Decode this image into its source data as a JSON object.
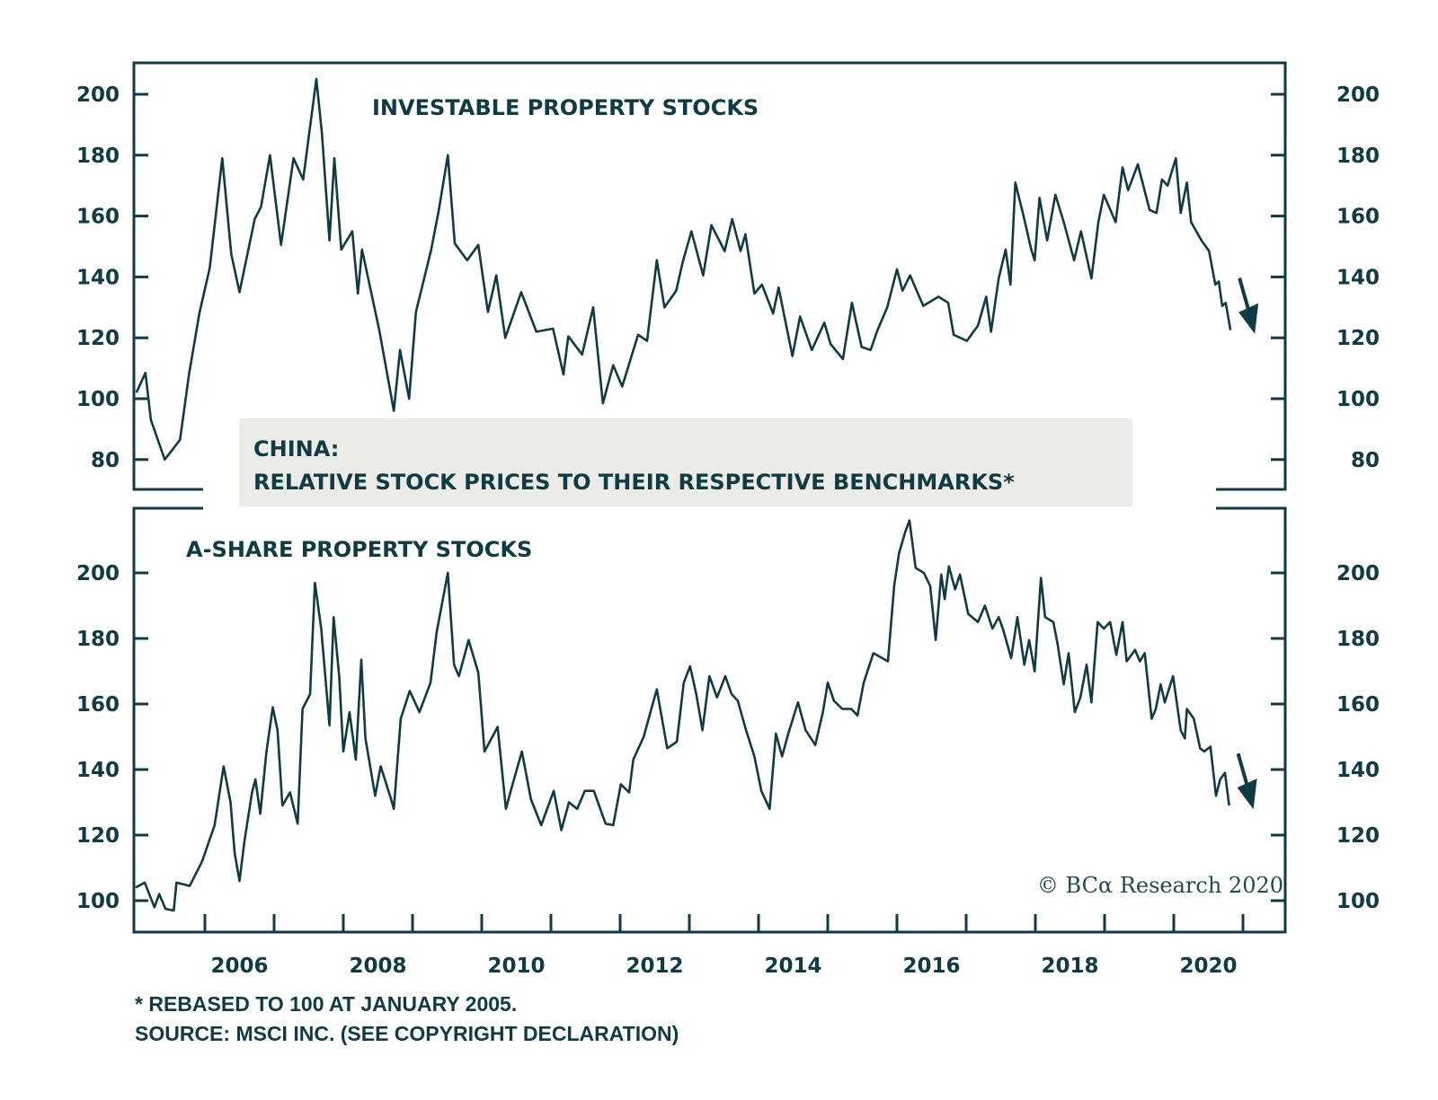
{
  "chart_data": [
    {
      "type": "line",
      "panel": "top",
      "title": "INVESTABLE PROPERTY STOCKS",
      "xlabel": "",
      "ylabel": "",
      "ylim": [
        70,
        210
      ],
      "xlim": [
        2005.0,
        2021.6
      ],
      "y_ticks": [
        80,
        100,
        120,
        140,
        160,
        180,
        200
      ],
      "y_tick_labels": [
        "80",
        "100",
        "120",
        "140",
        "160",
        "180",
        "200"
      ],
      "y_axis_sides": [
        "left",
        "right"
      ],
      "grid": false,
      "annotation": "down-arrow",
      "series": [
        {
          "name": "Investable property stocks (relative)",
          "x": [
            2005.01,
            2005.14,
            2005.22,
            2005.42,
            2005.64,
            2005.77,
            2005.92,
            2006.07,
            2006.25,
            2006.38,
            2006.5,
            2006.72,
            2006.81,
            2006.94,
            2007.1,
            2007.28,
            2007.42,
            2007.61,
            2007.69,
            2007.8,
            2007.87,
            2007.97,
            2008.13,
            2008.21,
            2008.27,
            2008.52,
            2008.73,
            2008.82,
            2008.95,
            2009.05,
            2009.27,
            2009.38,
            2009.51,
            2009.61,
            2009.79,
            2009.95,
            2010.09,
            2010.21,
            2010.34,
            2010.57,
            2010.79,
            2011.03,
            2011.18,
            2011.25,
            2011.45,
            2011.61,
            2011.75,
            2011.9,
            2012.03,
            2012.26,
            2012.39,
            2012.53,
            2012.64,
            2012.81,
            2012.9,
            2013.03,
            2013.2,
            2013.32,
            2013.51,
            2013.62,
            2013.74,
            2013.81,
            2013.94,
            2014.05,
            2014.21,
            2014.29,
            2014.49,
            2014.6,
            2014.77,
            2014.95,
            2015.04,
            2015.22,
            2015.35,
            2015.49,
            2015.62,
            2015.71,
            2015.86,
            2016.0,
            2016.08,
            2016.19,
            2016.38,
            2016.6,
            2016.74,
            2016.82,
            2017.01,
            2017.17,
            2017.29,
            2017.36,
            2017.47,
            2017.57,
            2017.64,
            2017.71,
            2017.84,
            2017.94,
            2017.99,
            2018.06,
            2018.17,
            2018.29,
            2018.41,
            2018.56,
            2018.66,
            2018.81,
            2018.91,
            2018.99,
            2019.16,
            2019.26,
            2019.34,
            2019.48,
            2019.65,
            2019.75,
            2019.83,
            2019.91,
            2020.03,
            2020.1,
            2020.19,
            2020.25,
            2020.4,
            2020.51,
            2020.6,
            2020.65,
            2020.7,
            2020.75,
            2020.82
          ],
          "values": [
            102,
            108.5,
            93,
            80,
            86.5,
            108,
            128,
            143,
            179,
            147.5,
            135,
            159,
            163,
            180,
            150.5,
            179,
            172,
            205,
            187.5,
            152,
            179,
            149,
            155,
            134.5,
            149,
            122.5,
            96,
            116,
            100,
            128.5,
            149,
            162,
            180,
            151,
            145.5,
            150.5,
            128.5,
            140.5,
            120,
            135,
            122,
            123,
            108,
            120.5,
            114.5,
            130,
            98.5,
            111,
            104,
            121,
            119,
            145.5,
            130,
            135.5,
            144.5,
            155,
            140.5,
            157,
            148.5,
            159,
            148.5,
            154,
            134.5,
            137.5,
            128,
            136.5,
            114,
            127,
            116,
            125,
            118,
            113,
            131.5,
            117,
            116,
            122,
            130,
            142.5,
            135.5,
            140.5,
            130.5,
            133.5,
            131.5,
            121,
            119,
            124,
            133.5,
            122,
            139.5,
            149,
            137.5,
            171,
            159,
            149,
            145.5,
            166,
            152,
            167,
            158,
            145.5,
            155,
            139.5,
            158,
            167,
            158,
            176,
            168.5,
            177,
            162,
            161,
            172,
            170,
            179,
            161,
            171,
            158,
            152,
            148.5,
            137.5,
            138.5,
            130.5,
            131.5,
            122.5
          ]
        }
      ]
    },
    {
      "type": "line",
      "panel": "bottom",
      "title": "A-SHARE PROPERTY STOCKS",
      "xlabel": "",
      "ylabel": "",
      "ylim": [
        90,
        220
      ],
      "xlim": [
        2005.0,
        2021.6
      ],
      "x_tick_labels": [
        "2006",
        "2008",
        "2010",
        "2012",
        "2014",
        "2016",
        "2018",
        "2020"
      ],
      "y_ticks": [
        100,
        120,
        140,
        160,
        180,
        200
      ],
      "y_tick_labels": [
        "100",
        "120",
        "140",
        "160",
        "180",
        "200"
      ],
      "y_axis_sides": [
        "left",
        "right"
      ],
      "grid": false,
      "annotation": "down-arrow",
      "series": [
        {
          "name": "A-share property stocks (relative)",
          "x": [
            2005.0,
            2005.13,
            2005.27,
            2005.34,
            2005.43,
            2005.55,
            2005.59,
            2005.78,
            2005.96,
            2006.14,
            2006.27,
            2006.37,
            2006.43,
            2006.5,
            2006.57,
            2006.68,
            2006.73,
            2006.8,
            2006.89,
            2006.98,
            2007.05,
            2007.12,
            2007.23,
            2007.34,
            2007.41,
            2007.52,
            2007.59,
            2007.68,
            2007.8,
            2007.86,
            2007.94,
            2008.0,
            2008.09,
            2008.18,
            2008.26,
            2008.32,
            2008.46,
            2008.54,
            2008.69,
            2008.73,
            2008.83,
            2008.96,
            2009.1,
            2009.26,
            2009.35,
            2009.51,
            2009.6,
            2009.67,
            2009.81,
            2009.95,
            2010.04,
            2010.23,
            2010.35,
            2010.42,
            2010.58,
            2010.71,
            2010.86,
            2011.04,
            2011.15,
            2011.26,
            2011.38,
            2011.49,
            2011.62,
            2011.79,
            2011.9,
            2012.01,
            2012.13,
            2012.19,
            2012.34,
            2012.45,
            2012.53,
            2012.68,
            2012.82,
            2012.92,
            2013.01,
            2013.1,
            2013.19,
            2013.29,
            2013.4,
            2013.52,
            2013.61,
            2013.7,
            2013.82,
            2013.94,
            2014.04,
            2014.16,
            2014.25,
            2014.34,
            2014.43,
            2014.57,
            2014.68,
            2014.82,
            2014.93,
            2015.0,
            2015.09,
            2015.21,
            2015.34,
            2015.43,
            2015.52,
            2015.66,
            2015.87,
            2015.96,
            2016.03,
            2016.12,
            2016.18,
            2016.27,
            2016.39,
            2016.48,
            2016.56,
            2016.64,
            2016.69,
            2016.75,
            2016.84,
            2016.91,
            2017.03,
            2017.17,
            2017.27,
            2017.38,
            2017.47,
            2017.53,
            2017.65,
            2017.74,
            2017.84,
            2017.91,
            2017.99,
            2018.08,
            2018.14,
            2018.26,
            2018.32,
            2018.41,
            2018.48,
            2018.57,
            2018.65,
            2018.74,
            2018.81,
            2018.9,
            2018.99,
            2019.08,
            2019.17,
            2019.26,
            2019.32,
            2019.44,
            2019.51,
            2019.58,
            2019.68,
            2019.74,
            2019.81,
            2019.87,
            2019.99,
            2020.1,
            2020.16,
            2020.19,
            2020.29,
            2020.38,
            2020.44,
            2020.53,
            2020.61,
            2020.67,
            2020.74,
            2020.8
          ],
          "values": [
            104,
            105.5,
            98,
            102,
            97.5,
            97,
            105.5,
            104.5,
            112,
            123,
            141,
            130,
            114.5,
            106,
            118,
            133,
            137,
            126.5,
            145.5,
            159,
            152,
            129,
            133,
            123.5,
            158.5,
            163,
            197,
            183,
            153.5,
            186.5,
            168.5,
            145.5,
            157.5,
            143,
            173.5,
            149.5,
            132,
            141,
            131,
            128,
            155.5,
            164,
            157.5,
            166.5,
            182,
            200,
            172,
            168.5,
            179.5,
            169.5,
            145.5,
            153,
            128,
            133.5,
            145.5,
            131,
            123,
            133.5,
            121.5,
            130,
            128,
            133.5,
            133.5,
            123.5,
            123,
            135.5,
            133,
            143,
            150,
            158.5,
            164.5,
            146.5,
            148.5,
            166.5,
            171.5,
            163,
            152,
            168.5,
            162,
            168.5,
            163,
            161,
            152,
            144,
            133.5,
            128,
            151,
            144,
            151,
            160.5,
            152,
            147.5,
            157.5,
            166.5,
            161,
            158.5,
            158.5,
            156.5,
            166.5,
            175.5,
            173,
            196,
            206,
            212.5,
            216,
            201.5,
            200,
            196,
            179.5,
            199.5,
            192,
            202,
            195,
            199.5,
            187.5,
            185,
            190,
            183,
            186.5,
            183,
            174,
            186.5,
            172,
            179.5,
            170,
            198.5,
            186.5,
            185,
            178.5,
            166,
            175.5,
            157.5,
            162,
            172,
            160.5,
            185,
            183,
            185,
            175,
            185,
            173,
            176.5,
            173,
            175.5,
            155.5,
            158.5,
            166,
            160.5,
            168.5,
            152,
            149.5,
            158.5,
            155.5,
            146.5,
            145.5,
            147,
            132,
            137,
            139,
            129
          ]
        }
      ]
    }
  ],
  "box": {
    "line1": "CHINA:",
    "line2": "RELATIVE STOCK PRICES TO THEIR RESPECTIVE BENCHMARKS*"
  },
  "footnotes": {
    "note": "* REBASED TO 100 AT JANUARY 2005.",
    "source": "SOURCE: MSCI INC. (SEE COPYRIGHT DECLARATION)"
  },
  "copyright": "© BCα Research 2020",
  "colors": {
    "line": "#0f3b44",
    "box_bg": "#ebebe7",
    "background": "#ffffff"
  }
}
